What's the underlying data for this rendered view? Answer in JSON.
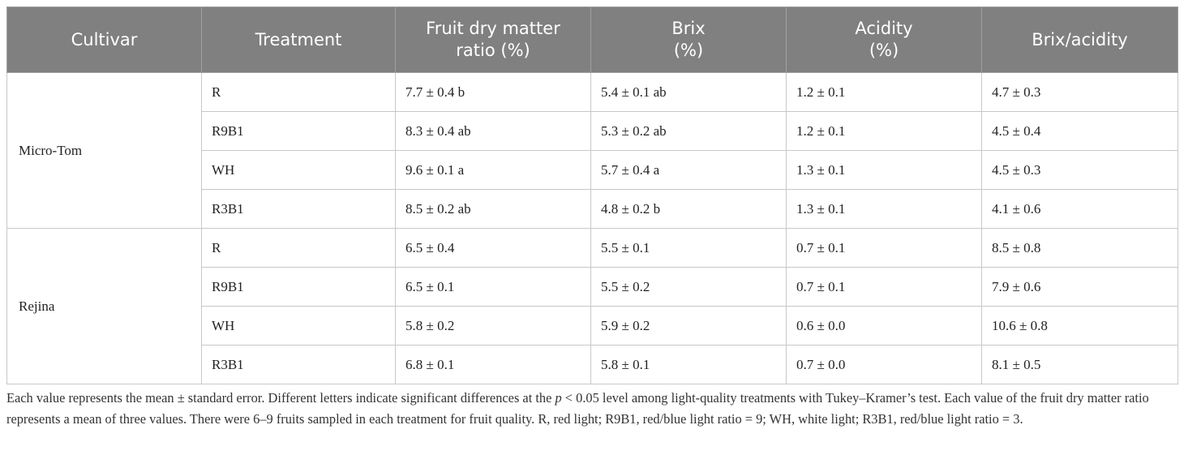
{
  "table": {
    "header": [
      [
        "Cultivar"
      ],
      [
        "Treatment"
      ],
      [
        "Fruit dry matter",
        "ratio (%)"
      ],
      [
        "Brix",
        "(%)"
      ],
      [
        "Acidity",
        "(%)"
      ],
      [
        "Brix/acidity"
      ]
    ],
    "groups": [
      {
        "cultivar": "Micro-Tom",
        "rows": [
          [
            "R",
            "7.7 ± 0.4 b",
            "5.4 ± 0.1 ab",
            "1.2 ± 0.1",
            "4.7 ± 0.3"
          ],
          [
            "R9B1",
            "8.3 ± 0.4 ab",
            "5.3 ± 0.2 ab",
            "1.2 ± 0.1",
            "4.5 ± 0.4"
          ],
          [
            "WH",
            "9.6 ± 0.1 a",
            "5.7 ± 0.4 a",
            "1.3 ± 0.1",
            "4.5 ± 0.3"
          ],
          [
            "R3B1",
            "8.5 ± 0.2 ab",
            "4.8 ± 0.2 b",
            "1.3 ± 0.1",
            "4.1 ± 0.6"
          ]
        ]
      },
      {
        "cultivar": "Rejina",
        "rows": [
          [
            "R",
            "6.5 ± 0.4",
            "5.5 ± 0.1",
            "0.7 ± 0.1",
            "8.5 ± 0.8"
          ],
          [
            "R9B1",
            "6.5 ± 0.1",
            "5.5 ± 0.2",
            "0.7 ± 0.1",
            "7.9 ± 0.6"
          ],
          [
            "WH",
            "5.8 ± 0.2",
            "5.9 ± 0.2",
            "0.6 ± 0.0",
            "10.6 ± 0.8"
          ],
          [
            "R3B1",
            "6.8 ± 0.1",
            "5.8 ± 0.1",
            "0.7 ± 0.0",
            "8.1 ± 0.5"
          ]
        ]
      }
    ]
  },
  "footnote": {
    "before": "Each value represents the mean ± standard error. Different letters indicate significant differences at the ",
    "italic": "p",
    "after": " < 0.05 level among light-quality treatments with Tukey–Kramer’s test. Each value of the fruit dry matter ratio represents a mean of three values. There were 6–9 fruits sampled in each treatment for fruit quality. R, red light; R9B1, red/blue light ratio = 9; WH, white light; R3B1, red/blue light ratio = 3."
  }
}
